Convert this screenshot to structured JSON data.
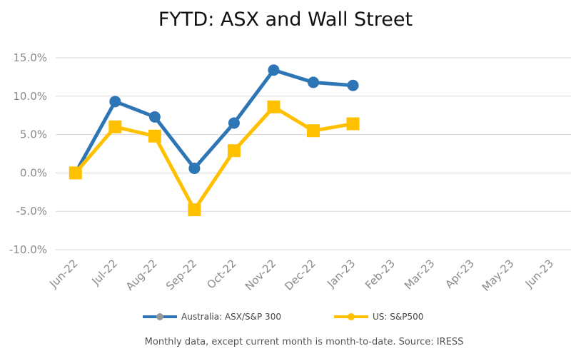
{
  "colors": {
    "australia": "#2E75B6",
    "us": "#FFC000",
    "axis_text": "#8a8a8a",
    "grid": "#d9d9d9"
  },
  "footnote": "Monthly data, except current month is month-to-date.  Source: IRESS",
  "chart_data": {
    "type": "line",
    "title": "FYTD: ASX and Wall Street",
    "categories": [
      "Jun-22",
      "Jul-22",
      "Aug-22",
      "Sep-22",
      "Oct-22",
      "Nov-22",
      "Dec-22",
      "Jan-23",
      "Feb-23",
      "Mar-23",
      "Apr-23",
      "May-23",
      "Jun-23"
    ],
    "y_ticks": [
      "15.0%",
      "10.0%",
      "5.0%",
      "0.0%",
      "-5.0%",
      "-10.0%"
    ],
    "ylim": [
      -10,
      15
    ],
    "ystep": 5,
    "grid": true,
    "legend_position": "bottom",
    "series": [
      {
        "name": "Australia: ASX/S&P 300",
        "marker": "circle",
        "color": "#2E75B6",
        "values": [
          0.0,
          9.3,
          7.3,
          0.6,
          6.5,
          13.4,
          11.8,
          11.4,
          null,
          null,
          null,
          null,
          null
        ]
      },
      {
        "name": "US: S&P500",
        "marker": "square",
        "color": "#FFC000",
        "values": [
          0.0,
          6.0,
          4.8,
          -4.8,
          2.9,
          8.6,
          5.5,
          6.4,
          null,
          null,
          null,
          null,
          null
        ]
      }
    ]
  }
}
